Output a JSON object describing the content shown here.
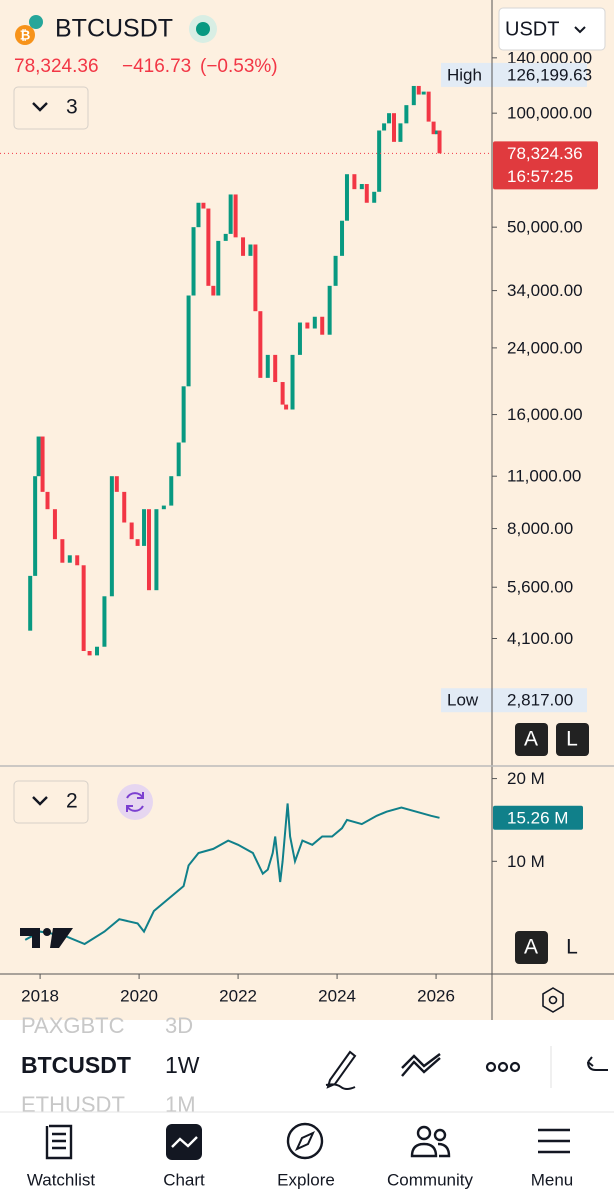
{
  "header": {
    "symbol": "BTCUSDT",
    "price": "78,324.36",
    "change": "−416.73",
    "change_pct": "(−0.53%)",
    "currency": "USDT",
    "indicators_main": "3",
    "indicators_sub": "2"
  },
  "chart_data": [
    {
      "type": "candlestick",
      "log_scale": true,
      "color_up": "#089981",
      "color_down": "#f23645",
      "x": [
        2017.7,
        2017.8,
        2017.9,
        2017.97,
        2018.05,
        2018.15,
        2018.3,
        2018.45,
        2018.6,
        2018.75,
        2018.88,
        2019.0,
        2019.15,
        2019.3,
        2019.45,
        2019.55,
        2019.7,
        2019.85,
        2019.97,
        2020.1,
        2020.2,
        2020.35,
        2020.5,
        2020.65,
        2020.8,
        2020.9,
        2021.0,
        2021.1,
        2021.2,
        2021.3,
        2021.4,
        2021.5,
        2021.6,
        2021.75,
        2021.85,
        2021.95,
        2022.1,
        2022.25,
        2022.35,
        2022.45,
        2022.6,
        2022.75,
        2022.9,
        2022.97,
        2023.1,
        2023.25,
        2023.4,
        2023.55,
        2023.7,
        2023.85,
        2023.97,
        2024.1,
        2024.2,
        2024.35,
        2024.5,
        2024.6,
        2024.75,
        2024.85,
        2024.95,
        2025.05,
        2025.15,
        2025.28,
        2025.4,
        2025.55,
        2025.65,
        2025.75,
        2025.85,
        2025.95,
        2026.02,
        2026.07
      ],
      "values": [
        4300,
        6000,
        11000,
        14000,
        10000,
        9000,
        7500,
        6500,
        6800,
        6400,
        3800,
        3700,
        3900,
        5300,
        11000,
        10000,
        8300,
        7500,
        7200,
        9000,
        5500,
        9000,
        9200,
        11000,
        13500,
        19000,
        33000,
        50000,
        58000,
        56000,
        35000,
        33000,
        46000,
        48000,
        61000,
        47000,
        42000,
        45000,
        30000,
        20000,
        23000,
        19500,
        17000,
        16500,
        23000,
        28000,
        27000,
        29000,
        26000,
        35000,
        42000,
        52000,
        69000,
        63000,
        65000,
        58000,
        62000,
        90000,
        94000,
        100000,
        84000,
        94000,
        105000,
        118000,
        112000,
        114000,
        95000,
        88000,
        90000,
        78324.36
      ],
      "xlim": [
        2017.19,
        2027.13
      ],
      "xticks": [
        2018,
        2020,
        2022,
        2024,
        2026
      ],
      "ylim": [
        1900,
        199000
      ],
      "yticks": [
        {
          "value": 140000,
          "label": "140,000.00"
        },
        {
          "value": 100000,
          "label": "100,000.00"
        },
        {
          "value": 50000,
          "label": "50,000.00"
        },
        {
          "value": 34000,
          "label": "34,000.00"
        },
        {
          "value": 24000,
          "label": "24,000.00"
        },
        {
          "value": 16000,
          "label": "16,000.00"
        },
        {
          "value": 11000,
          "label": "11,000.00"
        },
        {
          "value": 8000,
          "label": "8,000.00"
        },
        {
          "value": 5600,
          "label": "5,600.00"
        },
        {
          "value": 4100,
          "label": "4,100.00"
        }
      ],
      "high": {
        "name": "High",
        "value": 126199.63,
        "label": "126,199.63"
      },
      "low": {
        "name": "Low",
        "value": 2817,
        "label": "2,817.00"
      },
      "last": {
        "value": 78324.36,
        "label": "78,324.36",
        "countdown": "16:57:25"
      }
    },
    {
      "type": "line",
      "color": "#10808a",
      "x": [
        2017.7,
        2018.0,
        2018.5,
        2018.9,
        2019.3,
        2019.6,
        2019.97,
        2020.1,
        2020.3,
        2020.6,
        2020.9,
        2021.0,
        2021.2,
        2021.5,
        2021.8,
        2022.0,
        2022.3,
        2022.5,
        2022.6,
        2022.7,
        2022.75,
        2022.85,
        2022.9,
        2023.0,
        2023.05,
        2023.15,
        2023.3,
        2023.5,
        2023.7,
        2023.9,
        2024.1,
        2024.2,
        2024.5,
        2024.8,
        2025.0,
        2025.3,
        2025.6,
        2025.9,
        2026.07
      ],
      "values": [
        0.5,
        1.5,
        1.0,
        0,
        1.5,
        3.0,
        2.5,
        1.5,
        4,
        5.5,
        7,
        9.5,
        11,
        11.5,
        12.5,
        12,
        11,
        8.5,
        9,
        11,
        13,
        7.5,
        10,
        17,
        13,
        10,
        12.5,
        12,
        13,
        13,
        14,
        15,
        14.5,
        15.5,
        16,
        16.5,
        16,
        15.5,
        15.26
      ],
      "xlim": [
        2017.19,
        2027.13
      ],
      "ylim": [
        -3.5,
        21.4
      ],
      "yticks": [
        {
          "value": 20,
          "label": "20 M"
        },
        {
          "value": 10,
          "label": "10 M"
        }
      ],
      "last": {
        "value": 15.26,
        "label": "15.26 M"
      }
    }
  ],
  "toolbar": {
    "rows": [
      {
        "symbol": "PAXGBTC",
        "interval": "3D"
      },
      {
        "symbol": "BTCUSDT",
        "interval": "1W"
      },
      {
        "symbol": "ETHUSDT",
        "interval": "1M"
      }
    ]
  },
  "scale_buttons": [
    "A",
    "L"
  ],
  "nav": [
    "Watchlist",
    "Chart",
    "Explore",
    "Community",
    "Menu"
  ]
}
